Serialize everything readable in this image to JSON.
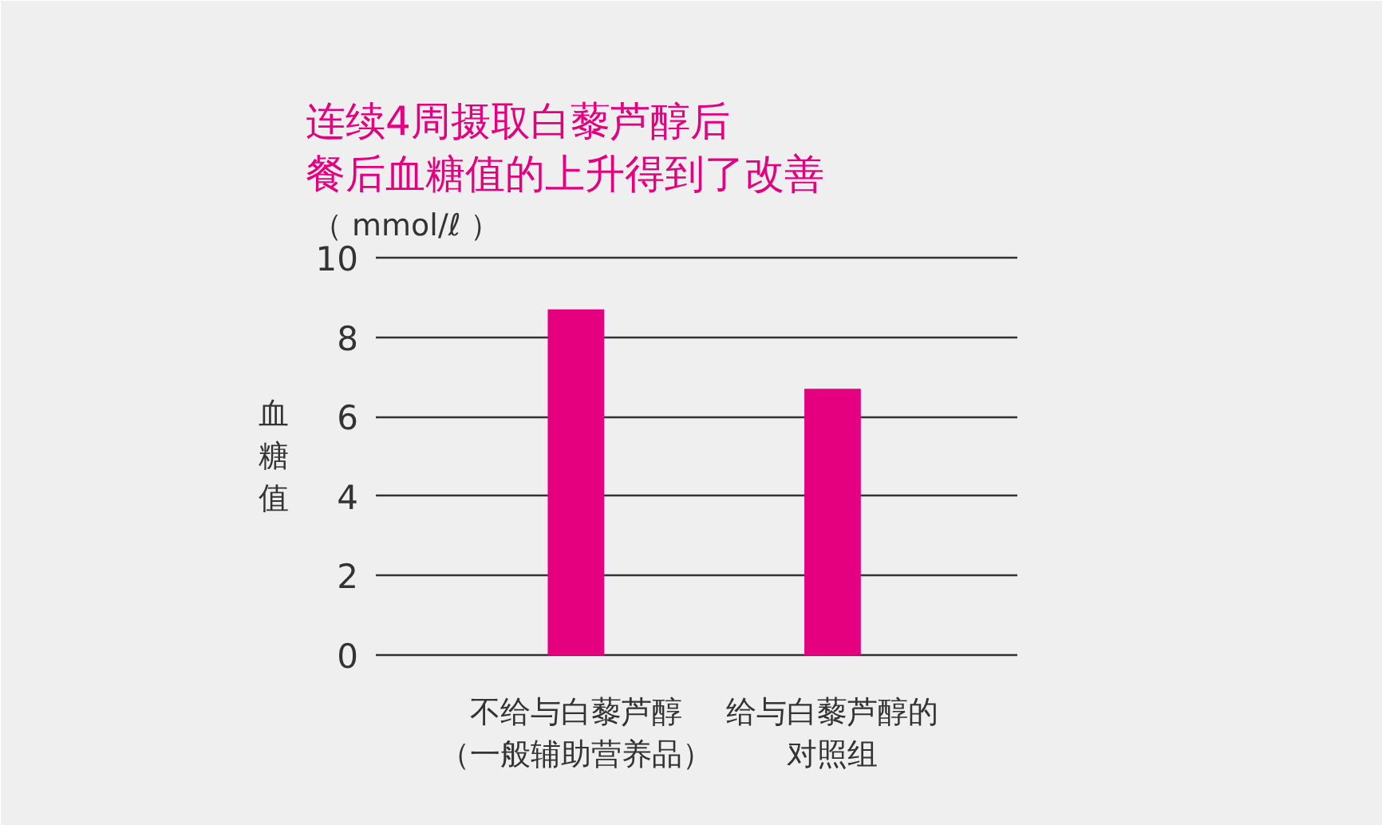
{
  "chart_data": {
    "type": "bar",
    "title": "连续4周摄取白藜芦醇后",
    "subtitle": "餐后血糖值的上升得到了改善",
    "ylabel": "血糖值",
    "annotations": [
      "（ mmol/ℓ ）"
    ],
    "categories": [
      "不给与白藜芦醇（一般辅助营养品）",
      "给与白藜芦醇的对照组"
    ],
    "values": [
      8.7,
      6.7
    ],
    "color": "#e4007f",
    "ylim": [
      0,
      10
    ],
    "yticks": [
      0,
      2,
      4,
      6,
      8,
      10
    ],
    "grid": "y"
  }
}
